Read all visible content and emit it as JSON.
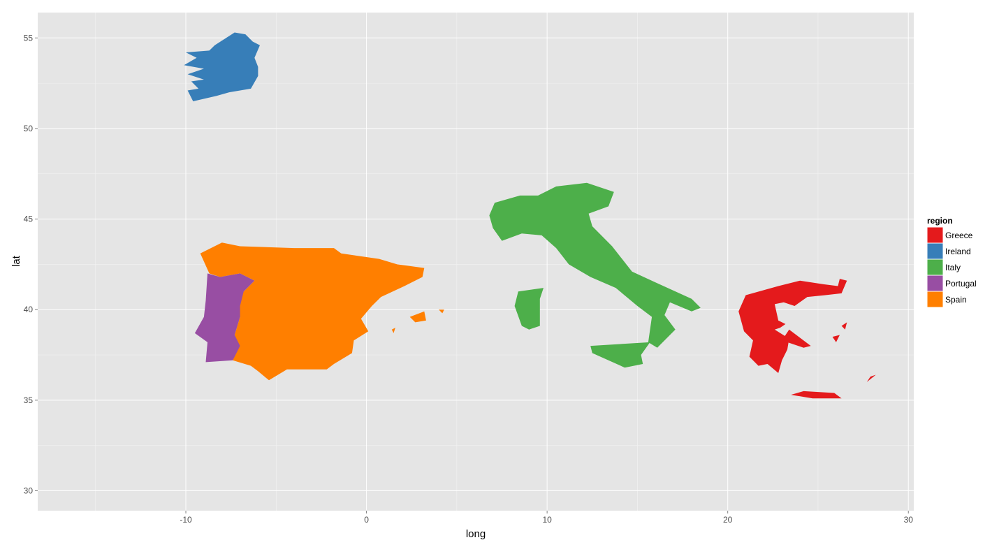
{
  "chart_data": {
    "type": "map",
    "xlabel": "long",
    "ylabel": "lat",
    "xlim": [
      -18.2,
      30.3
    ],
    "ylim": [
      28.9,
      56.4
    ],
    "x_ticks": [
      -10,
      0,
      10,
      20,
      30
    ],
    "y_ticks": [
      30,
      35,
      40,
      45,
      50,
      55
    ],
    "x_tick_labels": [
      "-10",
      "0",
      "10",
      "20",
      "30"
    ],
    "y_tick_labels": [
      "30",
      "35",
      "40",
      "45",
      "50",
      "55"
    ],
    "grid": true,
    "legend": {
      "title": "region",
      "position": "right",
      "entries": [
        {
          "name": "Greece",
          "color": "#E41A1C"
        },
        {
          "name": "Ireland",
          "color": "#377EB8"
        },
        {
          "name": "Italy",
          "color": "#4DAF4A"
        },
        {
          "name": "Portugal",
          "color": "#984EA3"
        },
        {
          "name": "Spain",
          "color": "#FF7F00"
        }
      ]
    },
    "regions": [
      {
        "name": "Ireland",
        "color": "#377EB8",
        "polygons": [
          [
            [
              -9.9,
              52.1
            ],
            [
              -9.3,
              52.2
            ],
            [
              -9.7,
              52.6
            ],
            [
              -9.0,
              52.7
            ],
            [
              -9.9,
              53.0
            ],
            [
              -9.0,
              53.3
            ],
            [
              -10.1,
              53.5
            ],
            [
              -9.4,
              53.9
            ],
            [
              -10.0,
              54.2
            ],
            [
              -8.7,
              54.3
            ],
            [
              -8.4,
              54.6
            ],
            [
              -7.3,
              55.3
            ],
            [
              -6.7,
              55.2
            ],
            [
              -6.3,
              54.8
            ],
            [
              -5.9,
              54.6
            ],
            [
              -6.2,
              53.9
            ],
            [
              -6.0,
              53.4
            ],
            [
              -6.0,
              52.9
            ],
            [
              -6.4,
              52.2
            ],
            [
              -7.6,
              52.0
            ],
            [
              -8.3,
              51.8
            ],
            [
              -9.6,
              51.5
            ]
          ]
        ]
      },
      {
        "name": "Spain",
        "color": "#FF7F00",
        "polygons": [
          [
            [
              -9.2,
              43.1
            ],
            [
              -8.0,
              43.7
            ],
            [
              -7.0,
              43.5
            ],
            [
              -4.0,
              43.4
            ],
            [
              -1.8,
              43.4
            ],
            [
              -1.4,
              43.1
            ],
            [
              0.7,
              42.8
            ],
            [
              1.7,
              42.5
            ],
            [
              3.2,
              42.3
            ],
            [
              3.1,
              41.8
            ],
            [
              2.1,
              41.3
            ],
            [
              0.8,
              40.7
            ],
            [
              0.3,
              40.2
            ],
            [
              -0.3,
              39.5
            ],
            [
              0.1,
              38.8
            ],
            [
              -0.7,
              38.3
            ],
            [
              -0.8,
              37.6
            ],
            [
              -1.8,
              37.0
            ],
            [
              -2.2,
              36.7
            ],
            [
              -4.4,
              36.7
            ],
            [
              -5.4,
              36.1
            ],
            [
              -6.0,
              36.6
            ],
            [
              -6.4,
              36.9
            ],
            [
              -7.4,
              37.2
            ],
            [
              -7.1,
              37.9
            ],
            [
              -7.3,
              38.6
            ],
            [
              -7.0,
              39.6
            ],
            [
              -7.5,
              40.3
            ],
            [
              -6.8,
              41.0
            ],
            [
              -6.2,
              41.6
            ],
            [
              -7.0,
              42.0
            ],
            [
              -8.1,
              41.8
            ],
            [
              -8.7,
              42.0
            ]
          ],
          [
            [
              2.4,
              39.6
            ],
            [
              3.2,
              39.9
            ],
            [
              3.3,
              39.4
            ],
            [
              2.7,
              39.3
            ]
          ],
          [
            [
              4.0,
              40.0
            ],
            [
              4.3,
              40.0
            ],
            [
              4.2,
              39.8
            ]
          ],
          [
            [
              1.4,
              38.9
            ],
            [
              1.6,
              39.0
            ],
            [
              1.5,
              38.7
            ]
          ]
        ]
      },
      {
        "name": "Portugal",
        "color": "#984EA3",
        "polygons": [
          [
            [
              -8.8,
              42.0
            ],
            [
              -8.1,
              41.8
            ],
            [
              -7.0,
              42.0
            ],
            [
              -6.2,
              41.6
            ],
            [
              -6.8,
              41.0
            ],
            [
              -7.0,
              40.2
            ],
            [
              -7.0,
              39.6
            ],
            [
              -7.3,
              38.6
            ],
            [
              -7.0,
              38.0
            ],
            [
              -7.4,
              37.2
            ],
            [
              -8.9,
              37.1
            ],
            [
              -8.8,
              38.2
            ],
            [
              -9.5,
              38.7
            ],
            [
              -9.0,
              39.6
            ],
            [
              -8.9,
              40.5
            ]
          ]
        ]
      },
      {
        "name": "Italy",
        "color": "#4DAF4A",
        "polygons": [
          [
            [
              7.5,
              43.8
            ],
            [
              7.0,
              44.5
            ],
            [
              6.8,
              45.2
            ],
            [
              7.1,
              45.9
            ],
            [
              8.5,
              46.3
            ],
            [
              9.5,
              46.3
            ],
            [
              10.5,
              46.8
            ],
            [
              12.2,
              47.0
            ],
            [
              13.7,
              46.5
            ],
            [
              13.4,
              45.7
            ],
            [
              12.3,
              45.3
            ],
            [
              12.5,
              44.6
            ],
            [
              13.6,
              43.5
            ],
            [
              14.7,
              42.1
            ],
            [
              16.0,
              41.5
            ],
            [
              18.0,
              40.6
            ],
            [
              18.5,
              40.1
            ],
            [
              18.0,
              39.9
            ],
            [
              16.8,
              40.4
            ],
            [
              16.5,
              39.7
            ],
            [
              17.1,
              38.9
            ],
            [
              16.1,
              37.9
            ],
            [
              15.6,
              38.2
            ],
            [
              15.8,
              39.6
            ],
            [
              15.0,
              40.2
            ],
            [
              13.8,
              41.2
            ],
            [
              12.4,
              41.8
            ],
            [
              11.2,
              42.5
            ],
            [
              10.5,
              43.4
            ],
            [
              9.7,
              44.1
            ],
            [
              8.6,
              44.2
            ]
          ],
          [
            [
              15.7,
              38.2
            ],
            [
              12.4,
              38.0
            ],
            [
              12.5,
              37.6
            ],
            [
              14.3,
              36.8
            ],
            [
              15.3,
              37.0
            ],
            [
              15.2,
              37.5
            ]
          ],
          [
            [
              8.4,
              41.0
            ],
            [
              9.8,
              41.2
            ],
            [
              9.6,
              40.6
            ],
            [
              9.6,
              39.1
            ],
            [
              9.0,
              38.9
            ],
            [
              8.6,
              39.1
            ],
            [
              8.2,
              40.2
            ]
          ]
        ]
      },
      {
        "name": "Greece",
        "color": "#E41A1C",
        "polygons": [
          [
            [
              20.6,
              39.9
            ],
            [
              21.0,
              40.8
            ],
            [
              22.8,
              41.3
            ],
            [
              24.0,
              41.6
            ],
            [
              25.3,
              41.4
            ],
            [
              26.1,
              41.3
            ],
            [
              26.2,
              41.7
            ],
            [
              26.6,
              41.6
            ],
            [
              26.3,
              40.9
            ],
            [
              25.4,
              40.8
            ],
            [
              24.4,
              40.7
            ],
            [
              23.7,
              40.2
            ],
            [
              23.1,
              40.4
            ],
            [
              22.6,
              40.3
            ],
            [
              22.8,
              39.4
            ],
            [
              23.2,
              39.2
            ],
            [
              22.9,
              39.0
            ],
            [
              22.6,
              38.9
            ],
            [
              23.4,
              38.4
            ],
            [
              23.3,
              37.8
            ],
            [
              23.0,
              37.2
            ],
            [
              22.8,
              36.5
            ],
            [
              22.2,
              37.0
            ],
            [
              21.7,
              36.9
            ],
            [
              21.2,
              37.4
            ],
            [
              21.4,
              38.3
            ],
            [
              20.9,
              38.8
            ]
          ],
          [
            [
              23.4,
              38.9
            ],
            [
              24.6,
              38.0
            ],
            [
              24.2,
              37.9
            ],
            [
              23.0,
              38.3
            ]
          ],
          [
            [
              23.5,
              35.3
            ],
            [
              24.7,
              35.1
            ],
            [
              26.3,
              35.1
            ],
            [
              25.9,
              35.4
            ],
            [
              24.2,
              35.5
            ]
          ],
          [
            [
              27.7,
              36.0
            ],
            [
              28.2,
              36.4
            ],
            [
              27.9,
              36.3
            ]
          ],
          [
            [
              26.3,
              39.1
            ],
            [
              26.6,
              39.3
            ],
            [
              26.5,
              38.9
            ]
          ],
          [
            [
              25.8,
              38.5
            ],
            [
              26.2,
              38.6
            ],
            [
              26.0,
              38.2
            ]
          ]
        ]
      }
    ]
  }
}
